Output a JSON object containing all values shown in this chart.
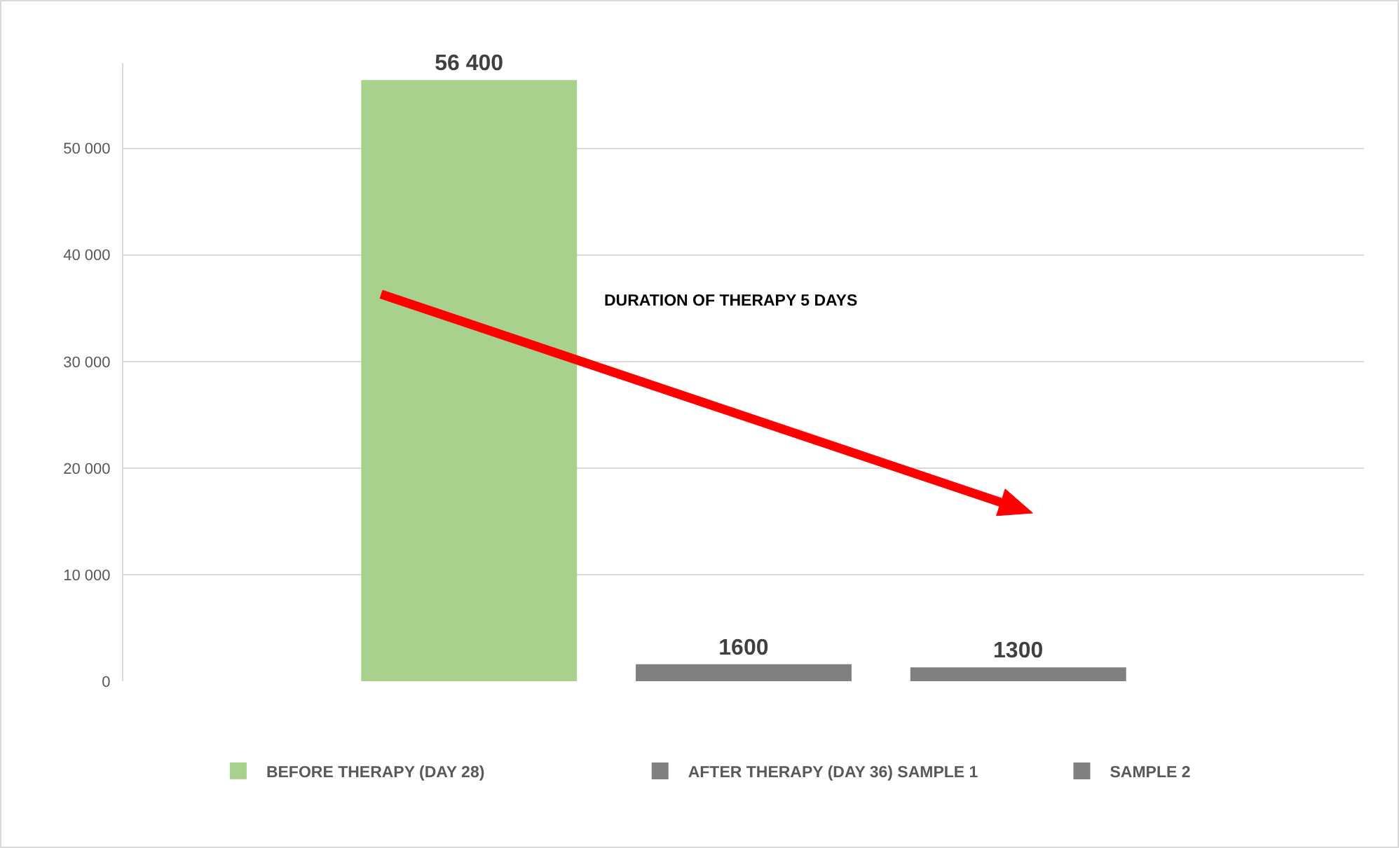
{
  "chart_data": {
    "type": "bar",
    "categories": [
      null
    ],
    "series": [
      {
        "name": "BEFORE THERAPY (DAY 28)",
        "color": "#a9d18e",
        "values": [
          56400
        ],
        "value_labels": [
          "56 400"
        ]
      },
      {
        "name": "AFTER THERAPY (DAY 36) SAMPLE 1",
        "color": "#808080",
        "values": [
          1600
        ],
        "value_labels": [
          "1600"
        ]
      },
      {
        "name": "SAMPLE 2",
        "color": "#808080",
        "values": [
          1300
        ],
        "value_labels": [
          "1300"
        ]
      }
    ],
    "ylim": [
      0,
      58000
    ],
    "yticks": [
      0,
      {
        "value": 10000,
        "label": "10 000"
      },
      {
        "value": 20000,
        "label": "20 000"
      },
      {
        "value": 30000,
        "label": "30 000"
      },
      {
        "value": 40000,
        "label": "40 000"
      },
      {
        "value": 50000,
        "label": "50 000"
      }
    ],
    "grid": "y",
    "legend": "bottom",
    "annotations": [
      "DURATION OF THERAPY 5 DAYS"
    ]
  }
}
